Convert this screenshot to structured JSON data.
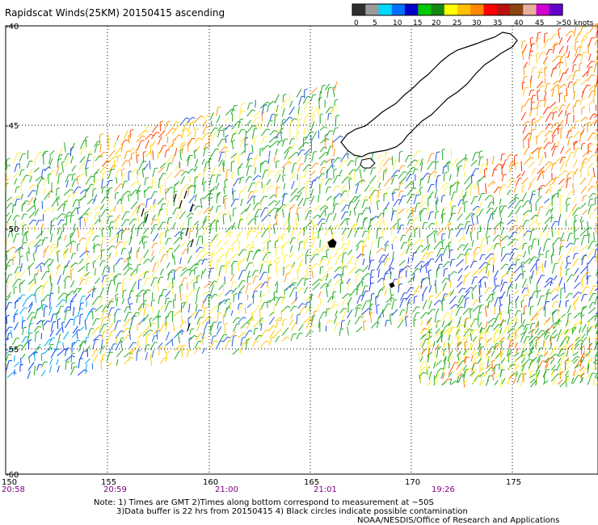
{
  "title": "Rapidscat Winds(25KM) 20150415 ascending",
  "colorbar": {
    "colors": [
      "#303030",
      "#9a9a9a",
      "#00d8ff",
      "#0070ff",
      "#0000c8",
      "#00c800",
      "#118811",
      "#ffff00",
      "#ffc000",
      "#ff8800",
      "#ff0000",
      "#bb1010",
      "#8b4513",
      "#e8b0a0",
      "#d000d0",
      "#6600cc"
    ],
    "ticks": [
      "0",
      "5",
      "10",
      "15",
      "20",
      "25",
      "30",
      "35",
      "40",
      "45",
      ">50 knots"
    ]
  },
  "axes": {
    "lon_ticks": [
      "150",
      "155",
      "160",
      "165",
      "170",
      "175"
    ],
    "lat_ticks": [
      "-40",
      "-45",
      "-50",
      "-55",
      "-60"
    ],
    "lon_range": [
      150,
      179.5
    ],
    "lat_range": [
      -40,
      -60
    ]
  },
  "times": [
    "20:58",
    "20:59",
    "21:00",
    "21:01",
    "19:26"
  ],
  "notes": {
    "line1": "Note: 1) Times are GMT 2)Times along bottom correspond to measurement at ~50S",
    "line2": "3)Data buffer is 22 hrs from 20150415 4) Black circles indicate possible contamination",
    "credit": "NOAA/NESDIS/Office of Research and Applications"
  },
  "colors": {
    "time_text": "#800080",
    "land_outline": "#000000",
    "grid": "#000000"
  }
}
